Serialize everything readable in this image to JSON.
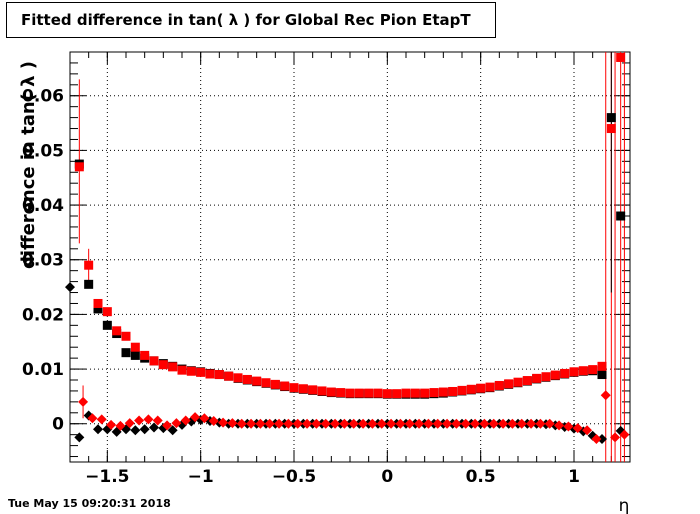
{
  "title": "Fitted difference in tan( λ ) for Global Rec Pion EtapT",
  "timestamp": "Tue May 15 09:20:31 2018",
  "chart_data": {
    "type": "scatter",
    "title": "Fitted difference in tan( λ ) for Global Rec Pion EtapT",
    "xlabel": "η",
    "ylabel": "difference in tan( λ )",
    "xlim": [
      -1.7,
      1.3
    ],
    "ylim": [
      -0.007,
      0.068
    ],
    "grid": true,
    "x_ticks": [
      {
        "v": -1.5,
        "label": "−1.5"
      },
      {
        "v": -1,
        "label": "−1"
      },
      {
        "v": -0.5,
        "label": "−0.5"
      },
      {
        "v": 0,
        "label": "0"
      },
      {
        "v": 0.5,
        "label": "0.5"
      },
      {
        "v": 1,
        "label": "1"
      }
    ],
    "y_ticks": [
      {
        "v": 0,
        "label": "0"
      },
      {
        "v": 0.01,
        "label": "0.01"
      },
      {
        "v": 0.02,
        "label": "0.02"
      },
      {
        "v": 0.03,
        "label": "0.03"
      },
      {
        "v": 0.04,
        "label": "0.04"
      },
      {
        "v": 0.05,
        "label": "0.05"
      },
      {
        "v": 0.06,
        "label": "0.06"
      }
    ],
    "series": [
      {
        "color": "#000000",
        "marker": "square",
        "points": [
          [
            -1.65,
            0.0475
          ],
          [
            -1.6,
            0.0255
          ],
          [
            -1.55,
            0.021
          ],
          [
            -1.5,
            0.018
          ],
          [
            -1.45,
            0.0165
          ],
          [
            -1.4,
            0.013
          ],
          [
            -1.35,
            0.0125
          ],
          [
            -1.3,
            0.012
          ],
          [
            -1.25,
            0.0115
          ],
          [
            -1.2,
            0.011
          ],
          [
            -1.15,
            0.0105
          ],
          [
            -1.1,
            0.01
          ],
          [
            -1.05,
            0.0097
          ],
          [
            -1.0,
            0.0095
          ],
          [
            -0.95,
            0.0092
          ],
          [
            -0.9,
            0.009
          ],
          [
            -0.85,
            0.0087
          ],
          [
            -0.8,
            0.0083
          ],
          [
            -0.75,
            0.008
          ],
          [
            -0.7,
            0.0077
          ],
          [
            -0.65,
            0.0074
          ],
          [
            -0.6,
            0.0071
          ],
          [
            -0.55,
            0.0068
          ],
          [
            -0.5,
            0.0065
          ],
          [
            -0.45,
            0.0063
          ],
          [
            -0.4,
            0.0061
          ],
          [
            -0.35,
            0.0059
          ],
          [
            -0.3,
            0.0057
          ],
          [
            -0.25,
            0.0056
          ],
          [
            -0.2,
            0.0055
          ],
          [
            -0.15,
            0.0055
          ],
          [
            -0.1,
            0.0055
          ],
          [
            -0.05,
            0.0055
          ],
          [
            0.0,
            0.0054
          ],
          [
            0.05,
            0.0054
          ],
          [
            0.1,
            0.0054
          ],
          [
            0.15,
            0.0054
          ],
          [
            0.2,
            0.0054
          ],
          [
            0.25,
            0.0055
          ],
          [
            0.3,
            0.0056
          ],
          [
            0.35,
            0.0058
          ],
          [
            0.4,
            0.006
          ],
          [
            0.45,
            0.0062
          ],
          [
            0.5,
            0.0064
          ],
          [
            0.55,
            0.0066
          ],
          [
            0.6,
            0.0069
          ],
          [
            0.65,
            0.0072
          ],
          [
            0.7,
            0.0075
          ],
          [
            0.75,
            0.0078
          ],
          [
            0.8,
            0.0082
          ],
          [
            0.85,
            0.0085
          ],
          [
            0.9,
            0.0088
          ],
          [
            0.95,
            0.0091
          ],
          [
            1.0,
            0.0094
          ],
          [
            1.05,
            0.0096
          ],
          [
            1.1,
            0.0097
          ],
          [
            1.15,
            0.009
          ],
          [
            1.2,
            0.056
          ],
          [
            1.25,
            0.038
          ]
        ]
      },
      {
        "color": "#ff0000",
        "marker": "square",
        "points": [
          [
            -1.65,
            0.047
          ],
          [
            -1.6,
            0.029
          ],
          [
            -1.55,
            0.022
          ],
          [
            -1.5,
            0.0205
          ],
          [
            -1.45,
            0.017
          ],
          [
            -1.4,
            0.016
          ],
          [
            -1.35,
            0.014
          ],
          [
            -1.3,
            0.0125
          ],
          [
            -1.25,
            0.0115
          ],
          [
            -1.2,
            0.0108
          ],
          [
            -1.15,
            0.0104
          ],
          [
            -1.1,
            0.0098
          ],
          [
            -1.05,
            0.0096
          ],
          [
            -1.0,
            0.0094
          ],
          [
            -0.95,
            0.0091
          ],
          [
            -0.9,
            0.009
          ],
          [
            -0.85,
            0.0087
          ],
          [
            -0.8,
            0.0084
          ],
          [
            -0.75,
            0.0081
          ],
          [
            -0.7,
            0.0078
          ],
          [
            -0.65,
            0.0075
          ],
          [
            -0.6,
            0.0072
          ],
          [
            -0.55,
            0.0069
          ],
          [
            -0.5,
            0.0066
          ],
          [
            -0.45,
            0.0064
          ],
          [
            -0.4,
            0.0062
          ],
          [
            -0.35,
            0.006
          ],
          [
            -0.3,
            0.0058
          ],
          [
            -0.25,
            0.0057
          ],
          [
            -0.2,
            0.0056
          ],
          [
            -0.15,
            0.0056
          ],
          [
            -0.1,
            0.0056
          ],
          [
            -0.05,
            0.0056
          ],
          [
            0.0,
            0.0055
          ],
          [
            0.05,
            0.0055
          ],
          [
            0.1,
            0.0056
          ],
          [
            0.15,
            0.0056
          ],
          [
            0.2,
            0.0056
          ],
          [
            0.25,
            0.0057
          ],
          [
            0.3,
            0.0058
          ],
          [
            0.35,
            0.0059
          ],
          [
            0.4,
            0.0061
          ],
          [
            0.45,
            0.0063
          ],
          [
            0.5,
            0.0065
          ],
          [
            0.55,
            0.0067
          ],
          [
            0.6,
            0.007
          ],
          [
            0.65,
            0.0073
          ],
          [
            0.7,
            0.0076
          ],
          [
            0.75,
            0.0079
          ],
          [
            0.8,
            0.0083
          ],
          [
            0.85,
            0.0086
          ],
          [
            0.9,
            0.0089
          ],
          [
            0.95,
            0.0092
          ],
          [
            1.0,
            0.0095
          ],
          [
            1.05,
            0.0097
          ],
          [
            1.1,
            0.0099
          ],
          [
            1.15,
            0.0105
          ],
          [
            1.2,
            0.054
          ],
          [
            1.25,
            0.067
          ]
        ]
      },
      {
        "color": "#000000",
        "marker": "diamond",
        "points": [
          [
            -1.7,
            0.025
          ],
          [
            -1.65,
            -0.0025
          ],
          [
            -1.6,
            0.0015
          ],
          [
            -1.55,
            -0.001
          ],
          [
            -1.5,
            -0.001
          ],
          [
            -1.45,
            -0.0015
          ],
          [
            -1.4,
            -0.001
          ],
          [
            -1.35,
            -0.0012
          ],
          [
            -1.3,
            -0.001
          ],
          [
            -1.25,
            -0.0007
          ],
          [
            -1.2,
            -0.0008
          ],
          [
            -1.15,
            -0.0012
          ],
          [
            -1.1,
            -0.0002
          ],
          [
            -1.05,
            0.0004
          ],
          [
            -1.0,
            0.0007
          ],
          [
            -0.95,
            0.0005
          ],
          [
            -0.9,
            0.0002
          ],
          [
            -0.85,
            0.0
          ],
          [
            -0.8,
            0.0
          ],
          [
            -0.75,
            0.0
          ],
          [
            -0.7,
            0.0
          ],
          [
            -0.65,
            0.0
          ],
          [
            -0.6,
            0.0
          ],
          [
            -0.55,
            0.0
          ],
          [
            -0.5,
            0.0
          ],
          [
            -0.45,
            0.0
          ],
          [
            -0.4,
            0.0
          ],
          [
            -0.35,
            0.0
          ],
          [
            -0.3,
            0.0
          ],
          [
            -0.25,
            0.0
          ],
          [
            -0.2,
            0.0
          ],
          [
            -0.15,
            0.0
          ],
          [
            -0.1,
            0.0
          ],
          [
            -0.05,
            0.0
          ],
          [
            0.0,
            0.0
          ],
          [
            0.05,
            0.0
          ],
          [
            0.1,
            0.0
          ],
          [
            0.15,
            0.0
          ],
          [
            0.2,
            0.0
          ],
          [
            0.25,
            0.0
          ],
          [
            0.3,
            0.0
          ],
          [
            0.35,
            0.0
          ],
          [
            0.4,
            0.0
          ],
          [
            0.45,
            0.0
          ],
          [
            0.5,
            0.0
          ],
          [
            0.55,
            0.0
          ],
          [
            0.6,
            0.0
          ],
          [
            0.65,
            0.0
          ],
          [
            0.7,
            0.0
          ],
          [
            0.75,
            0.0
          ],
          [
            0.8,
            0.0
          ],
          [
            0.85,
            -0.0001
          ],
          [
            0.9,
            -0.0003
          ],
          [
            0.95,
            -0.0006
          ],
          [
            1.0,
            -0.0009
          ],
          [
            1.05,
            -0.0014
          ],
          [
            1.1,
            -0.0022
          ],
          [
            1.15,
            -0.0028
          ],
          [
            1.25,
            -0.0013
          ]
        ]
      },
      {
        "color": "#ff0000",
        "marker": "diamond",
        "points": [
          [
            -1.63,
            0.004
          ],
          [
            -1.58,
            0.001
          ],
          [
            -1.53,
            0.0008
          ],
          [
            -1.48,
            -0.0002
          ],
          [
            -1.43,
            -0.0004
          ],
          [
            -1.38,
            0.0001
          ],
          [
            -1.33,
            0.0006
          ],
          [
            -1.28,
            0.0008
          ],
          [
            -1.23,
            0.0006
          ],
          [
            -1.18,
            -0.0003
          ],
          [
            -1.13,
            0.0001
          ],
          [
            -1.08,
            0.0006
          ],
          [
            -1.03,
            0.0012
          ],
          [
            -0.98,
            0.001
          ],
          [
            -0.93,
            0.0005
          ],
          [
            -0.88,
            0.0002
          ],
          [
            -0.83,
            0.0001
          ],
          [
            -0.78,
            0.0
          ],
          [
            -0.73,
            0.0
          ],
          [
            -0.68,
            0.0
          ],
          [
            -0.63,
            0.0
          ],
          [
            -0.58,
            0.0
          ],
          [
            -0.53,
            0.0
          ],
          [
            -0.48,
            0.0
          ],
          [
            -0.43,
            0.0
          ],
          [
            -0.38,
            0.0
          ],
          [
            -0.33,
            0.0
          ],
          [
            -0.28,
            0.0
          ],
          [
            -0.23,
            0.0
          ],
          [
            -0.18,
            0.0
          ],
          [
            -0.13,
            0.0
          ],
          [
            -0.08,
            0.0
          ],
          [
            -0.03,
            0.0
          ],
          [
            0.02,
            0.0
          ],
          [
            0.07,
            0.0
          ],
          [
            0.12,
            0.0
          ],
          [
            0.17,
            0.0
          ],
          [
            0.22,
            0.0
          ],
          [
            0.27,
            0.0
          ],
          [
            0.32,
            0.0
          ],
          [
            0.37,
            0.0
          ],
          [
            0.42,
            0.0
          ],
          [
            0.47,
            0.0
          ],
          [
            0.52,
            0.0
          ],
          [
            0.57,
            0.0
          ],
          [
            0.62,
            0.0
          ],
          [
            0.67,
            0.0
          ],
          [
            0.72,
            0.0
          ],
          [
            0.77,
            0.0
          ],
          [
            0.82,
            0.0
          ],
          [
            0.87,
            0.0
          ],
          [
            0.92,
            -0.0003
          ],
          [
            0.97,
            -0.0005
          ],
          [
            1.02,
            -0.0008
          ],
          [
            1.07,
            -0.0012
          ],
          [
            1.12,
            -0.0028
          ],
          [
            1.17,
            0.0052
          ],
          [
            1.22,
            -0.0025
          ],
          [
            1.27,
            -0.002
          ]
        ]
      }
    ]
  }
}
